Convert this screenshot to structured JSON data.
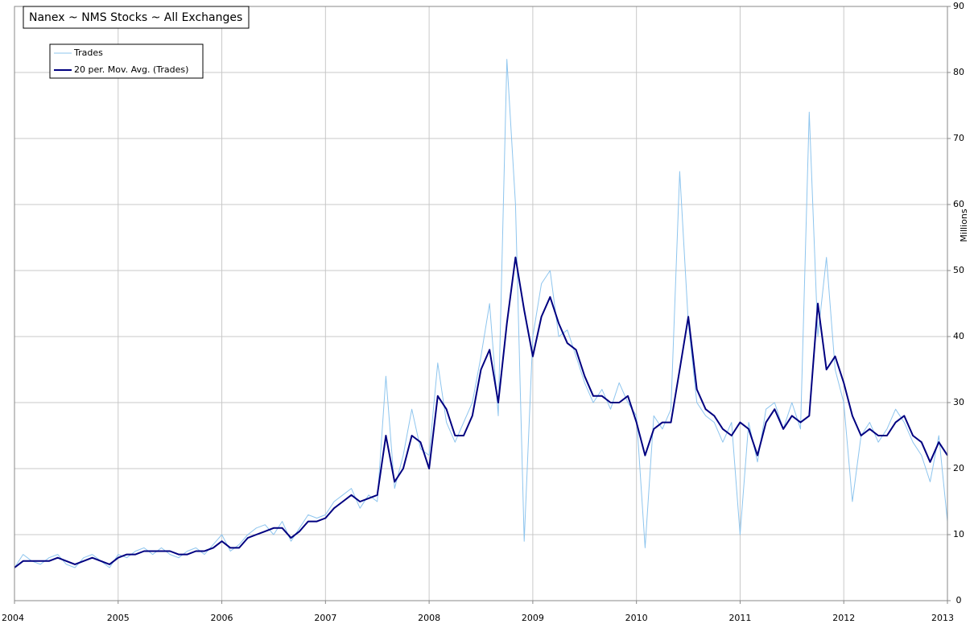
{
  "chart_data": {
    "type": "line",
    "title": "Nanex ~ NMS Stocks ~ All Exchanges",
    "y_label": "Millions",
    "x": [
      2004,
      2004.083,
      2004.167,
      2004.25,
      2004.333,
      2004.417,
      2004.5,
      2004.583,
      2004.667,
      2004.75,
      2004.833,
      2004.917,
      2005,
      2005.083,
      2005.167,
      2005.25,
      2005.333,
      2005.417,
      2005.5,
      2005.583,
      2005.667,
      2005.75,
      2005.833,
      2005.917,
      2006,
      2006.083,
      2006.167,
      2006.25,
      2006.333,
      2006.417,
      2006.5,
      2006.583,
      2006.667,
      2006.75,
      2006.833,
      2006.917,
      2007,
      2007.083,
      2007.167,
      2007.25,
      2007.333,
      2007.417,
      2007.5,
      2007.583,
      2007.667,
      2007.75,
      2007.833,
      2007.917,
      2008,
      2008.083,
      2008.167,
      2008.25,
      2008.333,
      2008.417,
      2008.5,
      2008.583,
      2008.667,
      2008.75,
      2008.833,
      2008.917,
      2009,
      2009.083,
      2009.167,
      2009.25,
      2009.333,
      2009.417,
      2009.5,
      2009.583,
      2009.667,
      2009.75,
      2009.833,
      2009.917,
      2010,
      2010.083,
      2010.167,
      2010.25,
      2010.333,
      2010.417,
      2010.5,
      2010.583,
      2010.667,
      2010.75,
      2010.833,
      2010.917,
      2011,
      2011.083,
      2011.167,
      2011.25,
      2011.333,
      2011.417,
      2011.5,
      2011.583,
      2011.667,
      2011.75,
      2011.833,
      2011.917,
      2012,
      2012.083,
      2012.167,
      2012.25,
      2012.333,
      2012.417,
      2012.5,
      2012.583,
      2012.667,
      2012.75,
      2012.833,
      2012.917,
      2013
    ],
    "series": [
      {
        "name": "Trades",
        "color": "#8ec5ee",
        "width": 1,
        "values": [
          5,
          7,
          6,
          5.5,
          6.5,
          7,
          5.5,
          5,
          6.5,
          7,
          6,
          5,
          7,
          6.5,
          7.5,
          8,
          7,
          8,
          7,
          6.5,
          7.5,
          8,
          7,
          8.5,
          10,
          7.5,
          8.5,
          10,
          11,
          11.5,
          10,
          12,
          9,
          11,
          13,
          12.5,
          13,
          15,
          16,
          17,
          14,
          16,
          15,
          34,
          17,
          22,
          29,
          23,
          22,
          36,
          27,
          24,
          27,
          30,
          37,
          45,
          28,
          82,
          60,
          9,
          40,
          48,
          50,
          40,
          41,
          37,
          33,
          30,
          32,
          29,
          33,
          30,
          28,
          8,
          28,
          26,
          29,
          65,
          42,
          30,
          28,
          27,
          24,
          27,
          10,
          27,
          21,
          29,
          30,
          26,
          30,
          26,
          74,
          40,
          52,
          35,
          30,
          15,
          25,
          27,
          24,
          26,
          29,
          27,
          24,
          22,
          18,
          25,
          12
        ]
      },
      {
        "name": "20 per. Mov. Avg. (Trades)",
        "color": "#000080",
        "width": 2,
        "values": [
          5,
          6,
          6,
          6,
          6,
          6.5,
          6,
          5.5,
          6,
          6.5,
          6,
          5.5,
          6.5,
          7,
          7,
          7.5,
          7.5,
          7.5,
          7.5,
          7,
          7,
          7.5,
          7.5,
          8,
          9,
          8,
          8,
          9.5,
          10,
          10.5,
          11,
          11,
          9.5,
          10.5,
          12,
          12,
          12.5,
          14,
          15,
          16,
          15,
          15.5,
          16,
          25,
          18,
          20,
          25,
          24,
          20,
          31,
          29,
          25,
          25,
          28,
          35,
          38,
          30,
          42,
          52,
          44,
          37,
          43,
          46,
          42,
          39,
          38,
          34,
          31,
          31,
          30,
          30,
          31,
          27,
          22,
          26,
          27,
          27,
          35,
          43,
          32,
          29,
          28,
          26,
          25,
          27,
          26,
          22,
          27,
          29,
          26,
          28,
          27,
          28,
          45,
          35,
          37,
          33,
          28,
          25,
          26,
          25,
          25,
          27,
          28,
          25,
          24,
          21,
          24,
          22
        ]
      }
    ],
    "xlim": [
      2004,
      2013
    ],
    "xticks": [
      2004,
      2005,
      2006,
      2007,
      2008,
      2009,
      2010,
      2011,
      2012,
      2013
    ],
    "ylim": [
      0,
      90
    ],
    "yticks": [
      0,
      10,
      20,
      30,
      40,
      50,
      60,
      70,
      80,
      90
    ],
    "grid": true,
    "legend": "upper left"
  }
}
